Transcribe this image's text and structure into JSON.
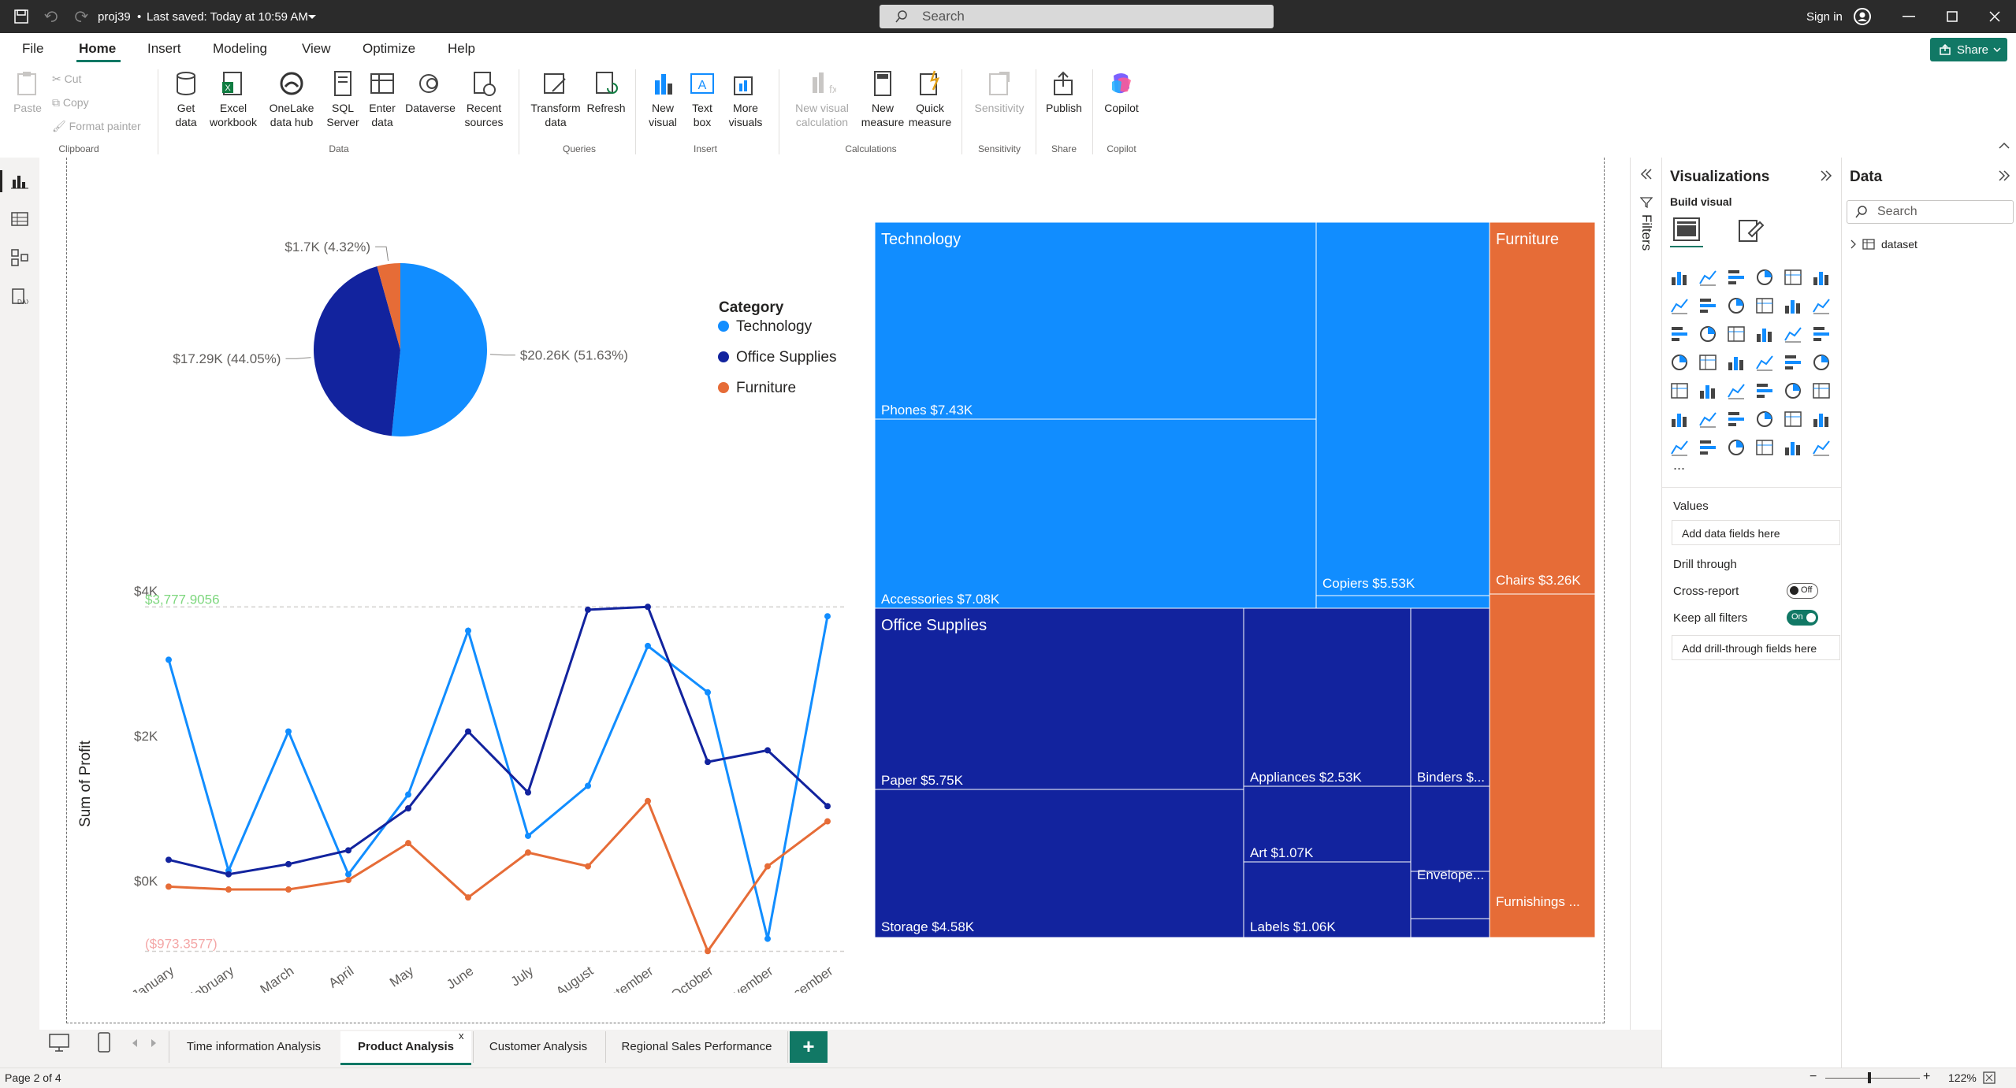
{
  "titlebar": {
    "doc_title": "proj39",
    "saved": "Last saved: Today at 10:59 AM",
    "search_placeholder": "Search",
    "signin": "Sign in"
  },
  "menu": {
    "items": [
      "File",
      "Home",
      "Insert",
      "Modeling",
      "View",
      "Optimize",
      "Help"
    ],
    "active": "Home",
    "share": "Share"
  },
  "ribbon": {
    "clipboard": {
      "paste": "Paste",
      "cut": "Cut",
      "copy": "Copy",
      "format_painter": "Format painter",
      "group": "Clipboard"
    },
    "data": {
      "get_data": "Get data",
      "excel": "Excel workbook",
      "onelake": "OneLake data hub",
      "sql": "SQL Server",
      "enter": "Enter data",
      "dataverse": "Dataverse",
      "recent": "Recent sources",
      "group": "Data"
    },
    "queries": {
      "transform": "Transform data",
      "refresh": "Refresh",
      "group": "Queries"
    },
    "insert": {
      "new_visual": "New visual",
      "text_box": "Text box",
      "more_visuals": "More visuals",
      "group": "Insert"
    },
    "calculations": {
      "new_visual_calc": "New visual calculation",
      "new_measure": "New measure",
      "quick_measure": "Quick measure",
      "group": "Calculations"
    },
    "sensitivity": {
      "label": "Sensitivity",
      "group": "Sensitivity"
    },
    "share": {
      "publish": "Publish",
      "group": "Share"
    },
    "copilot": {
      "label": "Copilot",
      "group": "Copilot"
    }
  },
  "colors": {
    "technology": "#118dff",
    "office_supplies": "#12239e",
    "furniture": "#e66c37",
    "accent": "#117865"
  },
  "chart_data": [
    {
      "type": "pie",
      "legend_title": "Category",
      "legend_placement": "right",
      "slices": [
        {
          "name": "Technology",
          "value": 20.26,
          "label": "$20.26K (51.63%)"
        },
        {
          "name": "Office Supplies",
          "value": 17.29,
          "label": "$17.29K (44.05%)"
        },
        {
          "name": "Furniture",
          "value": 1.7,
          "label": "$1.7K (4.32%)"
        }
      ]
    },
    {
      "type": "line",
      "ylabel": "Sum of Profit",
      "ylim": [
        -1000,
        4000
      ],
      "y_ticks": [
        "$4K",
        "$2K",
        "$0K"
      ],
      "categories": [
        "January",
        "February",
        "March",
        "April",
        "May",
        "June",
        "July",
        "August",
        "September",
        "October",
        "November",
        "December"
      ],
      "series": [
        {
          "name": "Technology",
          "values": [
            3050,
            140,
            2060,
            90,
            1190,
            3450,
            620,
            1310,
            3240,
            2600,
            -800,
            3650
          ]
        },
        {
          "name": "Office Supplies",
          "values": [
            290,
            90,
            230,
            420,
            1000,
            2060,
            1220,
            3740,
            3780,
            1640,
            1800,
            1030
          ]
        },
        {
          "name": "Furniture",
          "values": [
            -80,
            -120,
            -120,
            10,
            520,
            -230,
            390,
            200,
            1100,
            -970,
            200,
            820
          ]
        }
      ],
      "reference_lines": [
        {
          "label": "$3,777.9056",
          "value": 3777.9056
        },
        {
          "label": "($973.3577)",
          "value": -973.3577
        }
      ]
    },
    {
      "type": "treemap",
      "groups": [
        {
          "name": "Technology",
          "items": [
            {
              "name": "Phones",
              "label": "Phones $7.43K",
              "value": 7.43
            },
            {
              "name": "Accessories",
              "label": "Accessories $7.08K",
              "value": 7.08
            },
            {
              "name": "Copiers",
              "label": "Copiers $5.53K",
              "value": 5.53
            }
          ]
        },
        {
          "name": "Office Supplies",
          "items": [
            {
              "name": "Paper",
              "label": "Paper $5.75K",
              "value": 5.75
            },
            {
              "name": "Storage",
              "label": "Storage $4.58K",
              "value": 4.58
            },
            {
              "name": "Appliances",
              "label": "Appliances $2.53K",
              "value": 2.53
            },
            {
              "name": "Art",
              "label": "Art $1.07K",
              "value": 1.07
            },
            {
              "name": "Labels",
              "label": "Labels $1.06K",
              "value": 1.06
            },
            {
              "name": "Binders",
              "label": "Binders $...",
              "value": 0
            },
            {
              "name": "Envelopes",
              "label": "Envelope...",
              "value": 0
            }
          ]
        },
        {
          "name": "Furniture",
          "items": [
            {
              "name": "Chairs",
              "label": "Chairs $3.26K",
              "value": 3.26
            },
            {
              "name": "Furnishings",
              "label": "Furnishings ...",
              "value": 0
            }
          ]
        }
      ]
    }
  ],
  "viz_pane": {
    "title": "Visualizations",
    "build_visual": "Build visual",
    "values_label": "Values",
    "values_placeholder": "Add data fields here",
    "drill_through": "Drill through",
    "cross_report": "Cross-report",
    "cross_report_state": "Off",
    "keep_filters": "Keep all filters",
    "keep_filters_state": "On",
    "drill_placeholder": "Add drill-through fields here",
    "more": "..."
  },
  "filters_label": "Filters",
  "data_pane": {
    "title": "Data",
    "search_placeholder": "Search",
    "table": "dataset"
  },
  "tabs": [
    {
      "label": "Time information Analysis",
      "active": false
    },
    {
      "label": "Product Analysis",
      "active": true
    },
    {
      "label": "Customer Analysis",
      "active": false
    },
    {
      "label": "Regional Sales Performance",
      "active": false
    }
  ],
  "close_tab": "x",
  "add_tab": "+",
  "status": {
    "page": "Page 2 of 4",
    "zoom": "122%"
  }
}
